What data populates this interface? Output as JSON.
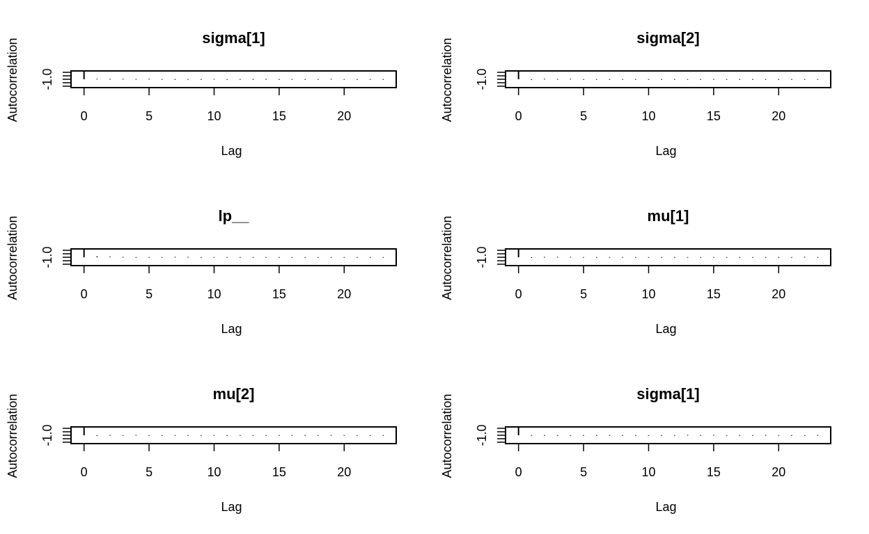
{
  "chart_data": [
    {
      "type": "bar",
      "title": "sigma[1]",
      "xlabel": "Lag",
      "ylabel": "Autocorrelation",
      "ytick_label": "-1.0",
      "xticks": [
        0,
        5,
        10,
        15,
        20
      ],
      "xlim": [
        -1,
        24
      ],
      "ylim": [
        -1,
        1
      ],
      "x": [
        0,
        1,
        2,
        3,
        4,
        5,
        6,
        7,
        8,
        9,
        10,
        11,
        12,
        13,
        14,
        15,
        16,
        17,
        18,
        19,
        20,
        21,
        22,
        23
      ],
      "values": [
        1,
        0.06,
        0.05,
        0.05,
        0.03,
        0.05,
        0.02,
        0.02,
        0.02,
        0.02,
        0.05,
        0.02,
        0.02,
        0.02,
        0.02,
        0.02,
        0.02,
        0.02,
        0.02,
        0.05,
        0.02,
        0.02,
        0.02,
        0.02
      ]
    },
    {
      "type": "bar",
      "title": "sigma[2]",
      "xlabel": "Lag",
      "ylabel": "Autocorrelation",
      "ytick_label": "-1.0",
      "xticks": [
        0,
        5,
        10,
        15,
        20
      ],
      "xlim": [
        -1,
        24
      ],
      "ylim": [
        -1,
        1
      ],
      "x": [
        0,
        1,
        2,
        3,
        4,
        5,
        6,
        7,
        8,
        9,
        10,
        11,
        12,
        13,
        14,
        15,
        16,
        17,
        18,
        19,
        20,
        21,
        22,
        23
      ],
      "values": [
        1,
        -0.06,
        0.06,
        0.03,
        0.06,
        0.02,
        0.02,
        0.02,
        0.02,
        0.02,
        0.02,
        0.02,
        0.02,
        0.02,
        0.02,
        0.02,
        0.02,
        0.02,
        0.02,
        0.02,
        0.02,
        0.02,
        0.02,
        0.02
      ]
    },
    {
      "type": "bar",
      "title": "lp__",
      "xlabel": "Lag",
      "ylabel": "Autocorrelation",
      "ytick_label": "-1.0",
      "xticks": [
        0,
        5,
        10,
        15,
        20
      ],
      "xlim": [
        -1,
        24
      ],
      "ylim": [
        -1,
        1
      ],
      "x": [
        0,
        1,
        2,
        3,
        4,
        5,
        6,
        7,
        8,
        9,
        10,
        11,
        12,
        13,
        14,
        15,
        16,
        17,
        18,
        19,
        20,
        21,
        22,
        23
      ],
      "values": [
        1,
        0.12,
        0.08,
        0.05,
        0.02,
        0.02,
        0.02,
        0.05,
        0.05,
        0.02,
        0.02,
        0.02,
        0.02,
        0.02,
        0.02,
        0.02,
        0.02,
        0.02,
        0.02,
        0.02,
        0.02,
        0.02,
        0.02,
        0.02
      ]
    },
    {
      "type": "bar",
      "title": "mu[1]",
      "xlabel": "Lag",
      "ylabel": "Autocorrelation",
      "ytick_label": "-1.0",
      "xticks": [
        0,
        5,
        10,
        15,
        20
      ],
      "xlim": [
        -1,
        24
      ],
      "ylim": [
        -1,
        1
      ],
      "x": [
        0,
        1,
        2,
        3,
        4,
        5,
        6,
        7,
        8,
        9,
        10,
        11,
        12,
        13,
        14,
        15,
        16,
        17,
        18,
        19,
        20,
        21,
        22,
        23
      ],
      "values": [
        1,
        -0.06,
        0.05,
        0.05,
        0.05,
        0.02,
        0.02,
        0.02,
        0.02,
        0.02,
        0.02,
        0.02,
        0.02,
        0.02,
        0.02,
        0.02,
        0.02,
        0.02,
        0.02,
        0.02,
        0.02,
        0.02,
        0.05,
        0.02
      ]
    },
    {
      "type": "bar",
      "title": "mu[2]",
      "xlabel": "Lag",
      "ylabel": "Autocorrelation",
      "ytick_label": "-1.0",
      "xticks": [
        0,
        5,
        10,
        15,
        20
      ],
      "xlim": [
        -1,
        24
      ],
      "ylim": [
        -1,
        1
      ],
      "x": [
        0,
        1,
        2,
        3,
        4,
        5,
        6,
        7,
        8,
        9,
        10,
        11,
        12,
        13,
        14,
        15,
        16,
        17,
        18,
        19,
        20,
        21,
        22,
        23
      ],
      "values": [
        1,
        -0.05,
        0.03,
        0.02,
        0.04,
        0.02,
        0.02,
        0.02,
        0.02,
        0.02,
        0.02,
        0.02,
        0.02,
        0.02,
        0.02,
        0.02,
        0.02,
        0.04,
        0.02,
        0.04,
        0.02,
        0.02,
        0.02,
        0.02
      ]
    },
    {
      "type": "bar",
      "title": "sigma[1]",
      "xlabel": "Lag",
      "ylabel": "Autocorrelation",
      "ytick_label": "-1.0",
      "xticks": [
        0,
        5,
        10,
        15,
        20
      ],
      "xlim": [
        -1,
        24
      ],
      "ylim": [
        -1,
        1
      ],
      "x": [
        0,
        1,
        2,
        3,
        4,
        5,
        6,
        7,
        8,
        9,
        10,
        11,
        12,
        13,
        14,
        15,
        16,
        17,
        18,
        19,
        20,
        21,
        22,
        23
      ],
      "values": [
        1,
        0.02,
        0.02,
        0.02,
        0.02,
        0.02,
        0.02,
        0.02,
        0.02,
        0.02,
        0.02,
        0.02,
        0.02,
        0.04,
        0.02,
        0.04,
        0.02,
        0.02,
        0.02,
        0.04,
        0.02,
        0.02,
        0.02,
        0.02
      ]
    }
  ]
}
